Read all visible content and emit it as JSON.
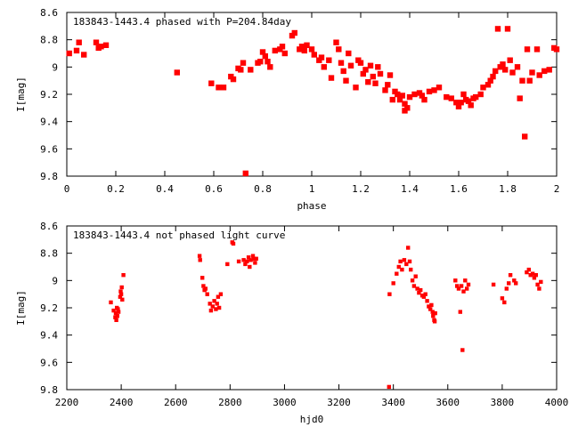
{
  "chart_data": [
    {
      "type": "scatter",
      "title": "183843-1443.4 phased with P=204.84day",
      "xlabel": "phase",
      "ylabel": "I[mag]",
      "xlim": [
        0,
        2
      ],
      "ylim": [
        8.6,
        9.8
      ],
      "y_inverted": true,
      "x_ticks": [
        "0",
        "0.2",
        "0.4",
        "0.6",
        "0.8",
        "1",
        "1.2",
        "1.4",
        "1.6",
        "1.8",
        "2"
      ],
      "y_ticks": [
        "8.6",
        "8.8",
        "9",
        "9.2",
        "9.4",
        "9.6",
        "9.8"
      ],
      "grid": false,
      "marker_color": "#ff0000",
      "points": [
        [
          0.01,
          8.9
        ],
        [
          0.04,
          8.88
        ],
        [
          0.05,
          8.82
        ],
        [
          0.07,
          8.91
        ],
        [
          0.12,
          8.82
        ],
        [
          0.13,
          8.86
        ],
        [
          0.14,
          8.85
        ],
        [
          0.16,
          8.84
        ],
        [
          0.45,
          9.04
        ],
        [
          0.59,
          9.12
        ],
        [
          0.62,
          9.15
        ],
        [
          0.64,
          9.15
        ],
        [
          0.67,
          9.07
        ],
        [
          0.68,
          9.09
        ],
        [
          0.7,
          9.01
        ],
        [
          0.71,
          9.02
        ],
        [
          0.72,
          8.97
        ],
        [
          0.73,
          9.78
        ],
        [
          0.75,
          9.02
        ],
        [
          0.78,
          8.97
        ],
        [
          0.79,
          8.96
        ],
        [
          0.8,
          8.89
        ],
        [
          0.81,
          8.92
        ],
        [
          0.82,
          8.96
        ],
        [
          0.83,
          9.0
        ],
        [
          0.85,
          8.88
        ],
        [
          0.87,
          8.87
        ],
        [
          0.88,
          8.85
        ],
        [
          0.89,
          8.9
        ],
        [
          0.92,
          8.77
        ],
        [
          0.93,
          8.75
        ],
        [
          0.95,
          8.87
        ],
        [
          0.96,
          8.85
        ],
        [
          0.97,
          8.88
        ],
        [
          0.98,
          8.84
        ],
        [
          1.0,
          8.87
        ],
        [
          1.01,
          8.91
        ],
        [
          1.03,
          8.95
        ],
        [
          1.04,
          8.93
        ],
        [
          1.05,
          9.0
        ],
        [
          1.07,
          8.95
        ],
        [
          1.08,
          9.08
        ],
        [
          1.1,
          8.82
        ],
        [
          1.11,
          8.87
        ],
        [
          1.12,
          8.97
        ],
        [
          1.13,
          9.03
        ],
        [
          1.14,
          9.1
        ],
        [
          1.15,
          8.9
        ],
        [
          1.16,
          8.99
        ],
        [
          1.18,
          9.15
        ],
        [
          1.19,
          8.95
        ],
        [
          1.2,
          8.97
        ],
        [
          1.21,
          9.05
        ],
        [
          1.22,
          9.02
        ],
        [
          1.23,
          9.11
        ],
        [
          1.24,
          8.99
        ],
        [
          1.25,
          9.07
        ],
        [
          1.26,
          9.12
        ],
        [
          1.27,
          9.0
        ],
        [
          1.28,
          9.05
        ],
        [
          1.3,
          9.17
        ],
        [
          1.31,
          9.13
        ],
        [
          1.32,
          9.06
        ],
        [
          1.33,
          9.24
        ],
        [
          1.34,
          9.18
        ],
        [
          1.35,
          9.2
        ],
        [
          1.36,
          9.24
        ],
        [
          1.37,
          9.21
        ],
        [
          1.38,
          9.27
        ],
        [
          1.38,
          9.32
        ],
        [
          1.39,
          9.3
        ],
        [
          1.4,
          9.22
        ],
        [
          1.42,
          9.2
        ],
        [
          1.44,
          9.19
        ],
        [
          1.45,
          9.21
        ],
        [
          1.46,
          9.24
        ],
        [
          1.48,
          9.18
        ],
        [
          1.5,
          9.17
        ],
        [
          1.52,
          9.15
        ],
        [
          1.55,
          9.22
        ],
        [
          1.57,
          9.23
        ],
        [
          1.59,
          9.26
        ],
        [
          1.6,
          9.29
        ],
        [
          1.61,
          9.26
        ],
        [
          1.62,
          9.2
        ],
        [
          1.63,
          9.24
        ],
        [
          1.64,
          9.25
        ],
        [
          1.65,
          9.28
        ],
        [
          1.66,
          9.23
        ],
        [
          1.67,
          9.22
        ],
        [
          1.69,
          9.2
        ],
        [
          1.7,
          9.15
        ],
        [
          1.72,
          9.13
        ],
        [
          1.73,
          9.1
        ],
        [
          1.74,
          9.07
        ],
        [
          1.75,
          9.03
        ],
        [
          1.76,
          8.72
        ],
        [
          1.77,
          9.0
        ],
        [
          1.78,
          8.98
        ],
        [
          1.79,
          9.02
        ],
        [
          1.8,
          8.72
        ],
        [
          1.81,
          8.95
        ],
        [
          1.82,
          9.04
        ],
        [
          1.84,
          9.0
        ],
        [
          1.85,
          9.23
        ],
        [
          1.86,
          9.1
        ],
        [
          1.87,
          9.51
        ],
        [
          1.88,
          8.87
        ],
        [
          1.89,
          9.1
        ],
        [
          1.9,
          9.04
        ],
        [
          1.92,
          8.87
        ],
        [
          1.93,
          9.06
        ],
        [
          1.95,
          9.03
        ],
        [
          1.97,
          9.02
        ],
        [
          1.99,
          8.86
        ],
        [
          2.0,
          8.87
        ]
      ]
    },
    {
      "type": "scatter",
      "title": "183843-1443.4 not phased light curve",
      "xlabel": "hjd0",
      "ylabel": "I[mag]",
      "xlim": [
        2200,
        4000
      ],
      "ylim": [
        8.6,
        9.8
      ],
      "y_inverted": true,
      "x_ticks": [
        "2200",
        "2400",
        "2600",
        "2800",
        "3000",
        "3200",
        "3400",
        "3600",
        "3800",
        "4000"
      ],
      "y_ticks": [
        "8.6",
        "8.8",
        "9",
        "9.2",
        "9.4",
        "9.6",
        "9.8"
      ],
      "grid": false,
      "marker_color": "#ff0000",
      "points": [
        [
          2362,
          9.16
        ],
        [
          2372,
          9.22
        ],
        [
          2378,
          9.27
        ],
        [
          2380,
          9.24
        ],
        [
          2382,
          9.29
        ],
        [
          2384,
          9.2
        ],
        [
          2386,
          9.26
        ],
        [
          2388,
          9.21
        ],
        [
          2390,
          9.23
        ],
        [
          2396,
          9.12
        ],
        [
          2398,
          9.08
        ],
        [
          2400,
          9.1
        ],
        [
          2402,
          9.05
        ],
        [
          2404,
          9.14
        ],
        [
          2408,
          8.96
        ],
        [
          2688,
          8.82
        ],
        [
          2690,
          8.85
        ],
        [
          2698,
          8.98
        ],
        [
          2702,
          9.04
        ],
        [
          2706,
          9.07
        ],
        [
          2710,
          9.06
        ],
        [
          2716,
          9.1
        ],
        [
          2726,
          9.17
        ],
        [
          2730,
          9.22
        ],
        [
          2736,
          9.19
        ],
        [
          2742,
          9.15
        ],
        [
          2748,
          9.21
        ],
        [
          2752,
          9.17
        ],
        [
          2756,
          9.12
        ],
        [
          2760,
          9.2
        ],
        [
          2766,
          9.1
        ],
        [
          2790,
          8.88
        ],
        [
          2808,
          8.72
        ],
        [
          2812,
          8.73
        ],
        [
          2832,
          8.86
        ],
        [
          2850,
          8.85
        ],
        [
          2856,
          8.88
        ],
        [
          2862,
          8.86
        ],
        [
          2868,
          8.83
        ],
        [
          2872,
          8.9
        ],
        [
          2876,
          8.85
        ],
        [
          2884,
          8.82
        ],
        [
          2888,
          8.84
        ],
        [
          2892,
          8.87
        ],
        [
          2896,
          8.84
        ],
        [
          3384,
          9.78
        ],
        [
          3386,
          9.1
        ],
        [
          3400,
          9.02
        ],
        [
          3412,
          8.95
        ],
        [
          3420,
          8.9
        ],
        [
          3426,
          8.86
        ],
        [
          3432,
          8.92
        ],
        [
          3440,
          8.85
        ],
        [
          3448,
          8.88
        ],
        [
          3454,
          8.76
        ],
        [
          3460,
          8.86
        ],
        [
          3464,
          8.92
        ],
        [
          3470,
          9.0
        ],
        [
          3476,
          9.04
        ],
        [
          3482,
          8.97
        ],
        [
          3488,
          9.06
        ],
        [
          3494,
          9.09
        ],
        [
          3500,
          9.07
        ],
        [
          3506,
          9.11
        ],
        [
          3512,
          9.12
        ],
        [
          3518,
          9.1
        ],
        [
          3524,
          9.15
        ],
        [
          3530,
          9.19
        ],
        [
          3536,
          9.21
        ],
        [
          3540,
          9.18
        ],
        [
          3544,
          9.23
        ],
        [
          3546,
          9.26
        ],
        [
          3548,
          9.24
        ],
        [
          3550,
          9.29
        ],
        [
          3552,
          9.3
        ],
        [
          3554,
          9.24
        ],
        [
          3628,
          9.0
        ],
        [
          3634,
          9.04
        ],
        [
          3640,
          9.06
        ],
        [
          3646,
          9.23
        ],
        [
          3650,
          9.04
        ],
        [
          3654,
          9.51
        ],
        [
          3658,
          9.08
        ],
        [
          3664,
          9.0
        ],
        [
          3670,
          9.06
        ],
        [
          3676,
          9.03
        ],
        [
          3768,
          9.03
        ],
        [
          3800,
          9.13
        ],
        [
          3808,
          9.16
        ],
        [
          3816,
          9.06
        ],
        [
          3824,
          9.02
        ],
        [
          3830,
          8.96
        ],
        [
          3844,
          9.0
        ],
        [
          3850,
          9.02
        ],
        [
          3890,
          8.94
        ],
        [
          3898,
          8.92
        ],
        [
          3904,
          8.96
        ],
        [
          3912,
          8.95
        ],
        [
          3918,
          8.98
        ],
        [
          3924,
          8.96
        ],
        [
          3930,
          9.03
        ],
        [
          3936,
          9.06
        ],
        [
          3942,
          9.01
        ]
      ]
    }
  ]
}
